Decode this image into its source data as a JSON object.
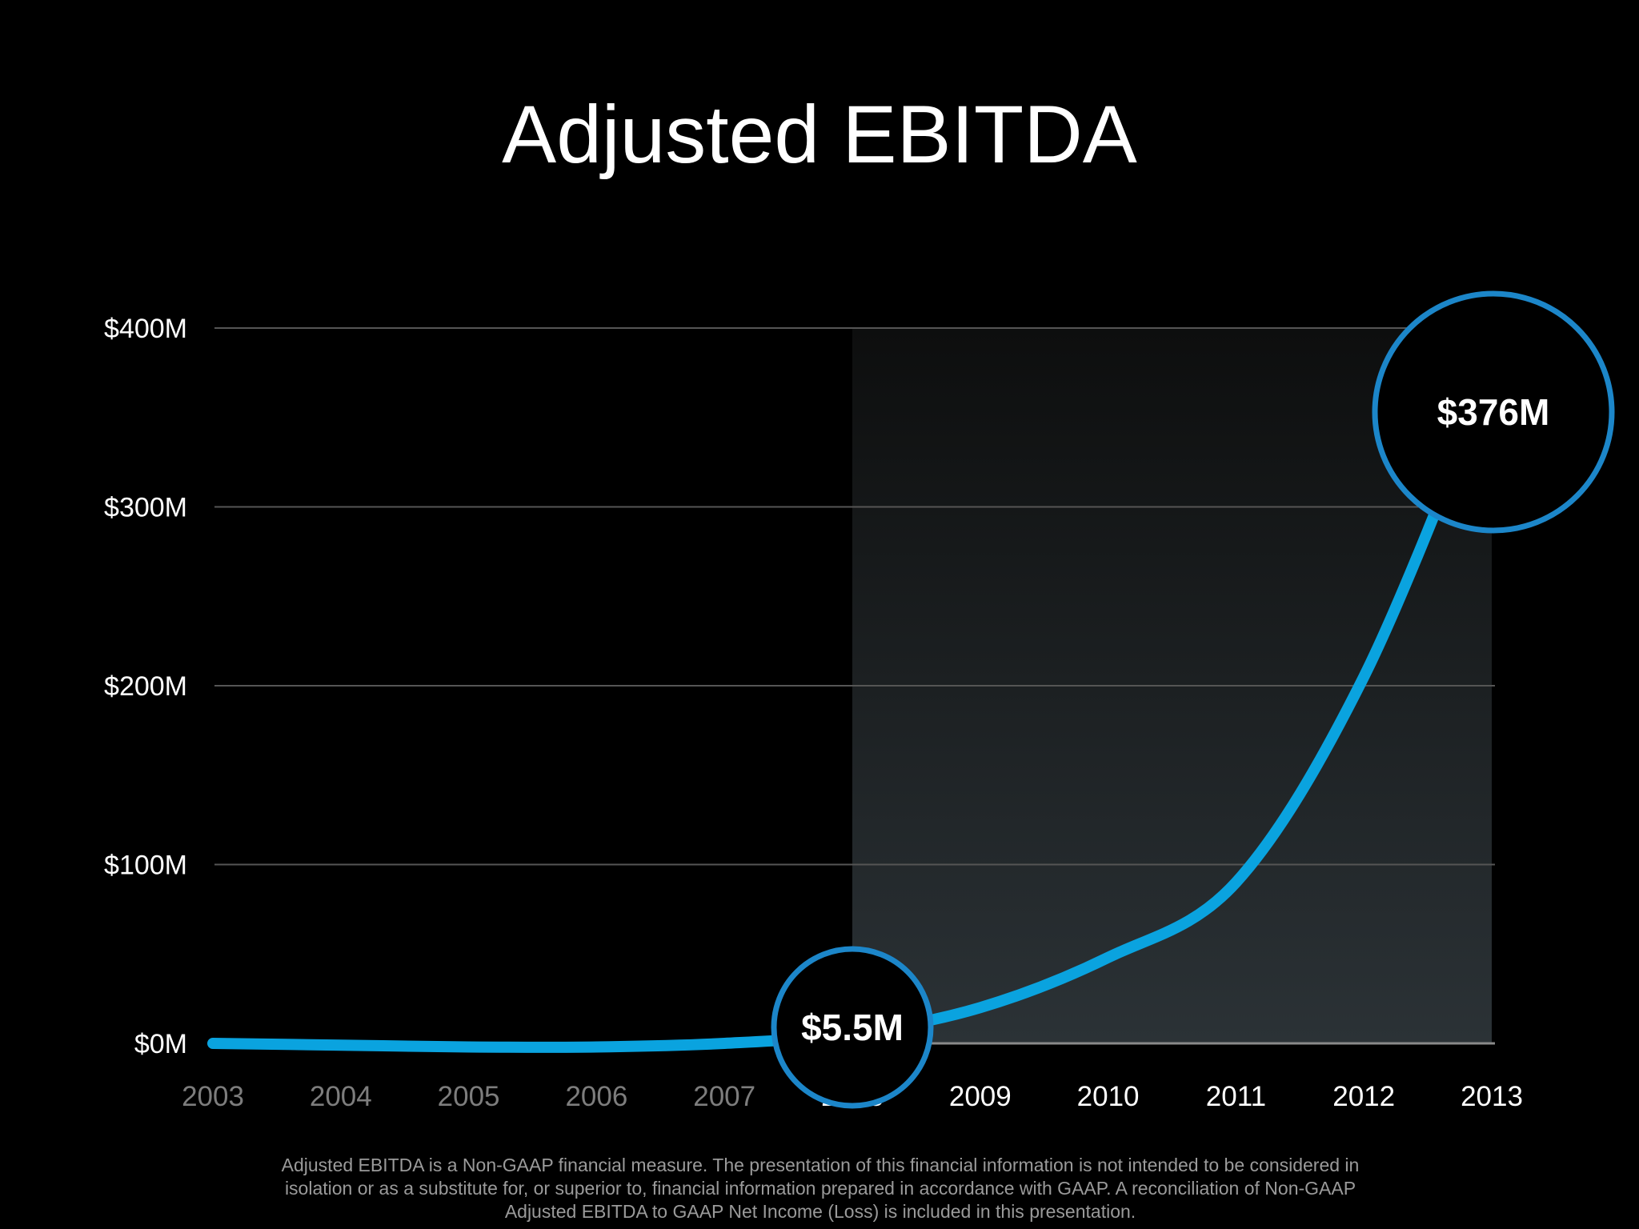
{
  "title": "Adjusted EBITDA",
  "footnote": "Adjusted EBITDA is a Non-GAAP financial measure. The presentation of this financial information is not intended to be considered in isolation or as a substitute for, or superior to, financial information prepared in accordance with GAAP.  A reconciliation of Non-GAAP Adjusted EBITDA to GAAP Net Income (Loss) is included in this presentation.",
  "colors": {
    "background": "#000000",
    "line": "#0aa3df",
    "callout_ring": "#1c86c9",
    "grid": "#555555",
    "tick_dim": "#7d7d7d",
    "tick_bright": "#ffffff"
  },
  "chart_data": {
    "type": "line",
    "title": "Adjusted EBITDA",
    "xlabel": "",
    "ylabel": "",
    "x": [
      "2003",
      "2004",
      "2005",
      "2006",
      "2007",
      "2008",
      "2009",
      "2010",
      "2011",
      "2012",
      "2013"
    ],
    "series": [
      {
        "values": [
          0,
          -1,
          -2,
          -2,
          0,
          5.5,
          20,
          48,
          90,
          205,
          376
        ]
      }
    ],
    "y_ticks": [
      "$0M",
      "$100M",
      "$200M",
      "$300M",
      "$400M"
    ],
    "ylim": [
      0,
      400
    ],
    "grid": true,
    "highlight_range": [
      "2008",
      "2013"
    ],
    "callouts": [
      {
        "x": "2008",
        "label": "$5.5M"
      },
      {
        "x": "2013",
        "label": "$376M"
      }
    ]
  }
}
